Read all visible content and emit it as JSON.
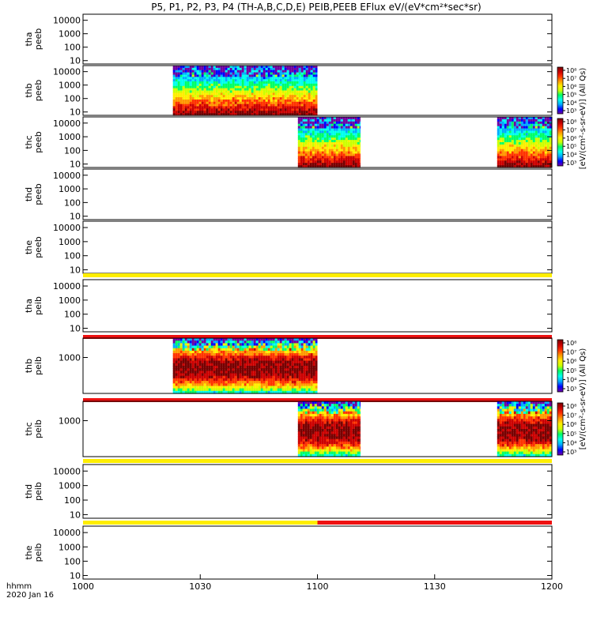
{
  "chart_data": {
    "type": "heatmap",
    "title": "P5, P1, P2, P3, P4 (TH-A,B,C,D,E) PEIB,PEEB EFlux eV/(eV*cm²*sec*sr)",
    "time_axis": {
      "range": [
        "1000",
        "1200"
      ],
      "ticks": [
        "1000",
        "1030",
        "1100",
        "1130",
        "1200"
      ],
      "label_line1": "hhmm",
      "label_line2": "2020 Jan 16"
    },
    "energy_ticks": [
      "10000",
      "1000",
      "100",
      "10"
    ],
    "peib_ticks": [
      "1000"
    ],
    "panels": [
      {
        "id": "tha-peeb",
        "line1": "tha",
        "line2": "peeb",
        "has_data": false,
        "bar": null
      },
      {
        "id": "thb-peeb",
        "line1": "thb",
        "line2": "peeb",
        "has_data": true,
        "intervals": [
          {
            "start_hhmm": "1023",
            "end_hhmm": "1100"
          }
        ],
        "bar": null
      },
      {
        "id": "thc-peeb",
        "line1": "thc",
        "line2": "peeb",
        "has_data": true,
        "intervals": [
          {
            "start_hhmm": "1055",
            "end_hhmm": "1111"
          },
          {
            "start_hhmm": "1146",
            "end_hhmm": "1200"
          }
        ],
        "bar": null
      },
      {
        "id": "thd-peeb",
        "line1": "thd",
        "line2": "peeb",
        "has_data": false,
        "bar": null
      },
      {
        "id": "the-peeb",
        "line1": "the",
        "line2": "peeb",
        "has_data": false,
        "bar": [
          {
            "from_hhmm": "1000",
            "to_hhmm": "1200",
            "color": "#ffee00"
          }
        ]
      },
      {
        "id": "tha-peib",
        "line1": "tha",
        "line2": "peib",
        "has_data": false,
        "bar": [
          {
            "from_hhmm": "1000",
            "to_hhmm": "1200",
            "color": "#ee1111"
          }
        ]
      },
      {
        "id": "thb-peib",
        "line1": "thb",
        "line2": "peib",
        "has_data": true,
        "intervals": [
          {
            "start_hhmm": "1023",
            "end_hhmm": "1100"
          }
        ],
        "bar": [
          {
            "from_hhmm": "1000",
            "to_hhmm": "1200",
            "color": "#ee1111"
          }
        ]
      },
      {
        "id": "thc-peib",
        "line1": "thc",
        "line2": "peib",
        "has_data": true,
        "intervals": [
          {
            "start_hhmm": "1055",
            "end_hhmm": "1111"
          },
          {
            "start_hhmm": "1146",
            "end_hhmm": "1200"
          }
        ],
        "bar": [
          {
            "from_hhmm": "1000",
            "to_hhmm": "1200",
            "color": "#ffee00"
          }
        ]
      },
      {
        "id": "thd-peib",
        "line1": "thd",
        "line2": "peib",
        "has_data": false,
        "bar": [
          {
            "from_hhmm": "1000",
            "to_hhmm": "1100",
            "color": "#ffee00"
          },
          {
            "from_hhmm": "1100",
            "to_hhmm": "1200",
            "color": "#ee1111"
          }
        ]
      },
      {
        "id": "the-peib",
        "line1": "the",
        "line2": "peib",
        "has_data": false,
        "bar": null
      }
    ],
    "colorbars": [
      {
        "panel": "thb-peeb",
        "labels": [
          "10⁸",
          "10⁷",
          "10⁶",
          "10⁵",
          "10⁴",
          "10³"
        ]
      },
      {
        "panel": "thc-peeb",
        "labels": [
          "10⁸",
          "10⁷",
          "10⁶",
          "10⁵",
          "10⁴",
          "10³"
        ]
      },
      {
        "panel": "thb-peib",
        "labels": [
          "10⁸",
          "10⁷",
          "10⁶",
          "10⁵",
          "10⁴",
          "10³"
        ]
      },
      {
        "panel": "thc-peib",
        "labels": [
          "10⁸",
          "10⁷",
          "10⁶",
          "10⁵",
          "10⁴",
          "10³"
        ]
      }
    ],
    "colorbar_unit_peeb": "[eV/(cm²-s-sr-eV)] (All Qs)",
    "colorbar_unit_peib": "[eV/(cm²-s-sr-eV)] (All Qs)",
    "colors": {
      "scale": [
        "#7000a0",
        "#0000ff",
        "#00aaff",
        "#00ffee",
        "#00ff66",
        "#ccff00",
        "#ffee00",
        "#ff9900",
        "#ff3300",
        "#cc0000",
        "#770000"
      ],
      "bar_yellow": "#ffee00",
      "bar_red": "#ee1111"
    }
  }
}
